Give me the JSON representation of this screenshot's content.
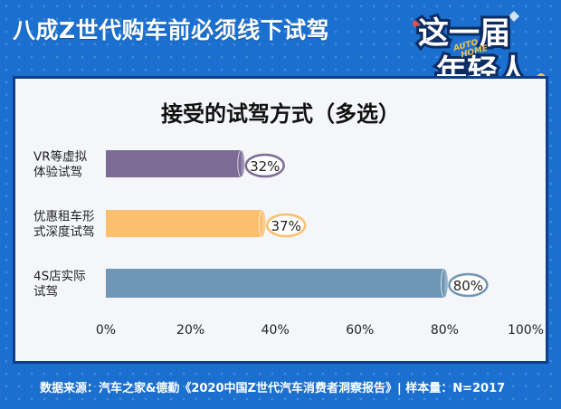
{
  "headline": "八成Z世代购车前必须线下试驾",
  "badge": {
    "line1": "这一届",
    "line2": "年轻人",
    "ribbon1": "AUTO",
    "ribbon2": "HOME"
  },
  "chart_data": {
    "type": "bar",
    "orientation": "horizontal",
    "title": "接受的试驾方式（多选）",
    "categories": [
      [
        "VR等虚拟",
        "体验试驾"
      ],
      [
        "优惠租车形",
        "式深度试驾"
      ],
      [
        "4S店实际",
        "试驾"
      ]
    ],
    "values": [
      32,
      37,
      80
    ],
    "value_labels": [
      "32%",
      "37%",
      "80%"
    ],
    "bar_colors": [
      "#7b6b95",
      "#fcbf6e",
      "#6f96b4"
    ],
    "xlim": [
      0,
      100
    ],
    "xticks": [
      0,
      20,
      40,
      60,
      80,
      100
    ],
    "xtick_labels": [
      "0%",
      "20%",
      "40%",
      "60%",
      "80%",
      "100%"
    ],
    "grid": false,
    "legend": false
  },
  "footer": "数据来源：汽车之家&德勤《2020中国Z世代汽车消费者洞察报告》| 样本量：N=2017"
}
